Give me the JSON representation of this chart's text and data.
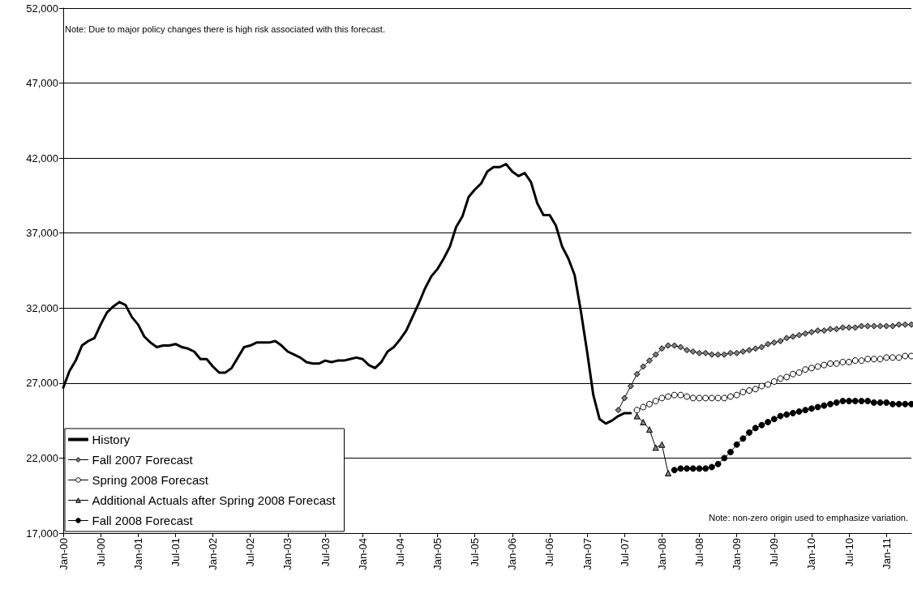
{
  "chart_data": {
    "type": "line",
    "categories": [
      "Jan-00",
      null,
      null,
      null,
      null,
      null,
      "Jul-00",
      null,
      null,
      null,
      null,
      null,
      "Jan-01",
      null,
      null,
      null,
      null,
      null,
      "Jul-01",
      null,
      null,
      null,
      null,
      null,
      "Jan-02",
      null,
      null,
      null,
      null,
      null,
      "Jul-02",
      null,
      null,
      null,
      null,
      null,
      "Jan-03",
      null,
      null,
      null,
      null,
      null,
      "Jul-03",
      null,
      null,
      null,
      null,
      null,
      "Jan-04",
      null,
      null,
      null,
      null,
      null,
      "Jul-04",
      null,
      null,
      null,
      null,
      null,
      "Jan-05",
      null,
      null,
      null,
      null,
      null,
      "Jul-05",
      null,
      null,
      null,
      null,
      null,
      "Jan-06",
      null,
      null,
      null,
      null,
      null,
      "Jul-06",
      null,
      null,
      null,
      null,
      null,
      "Jan-07",
      null,
      null,
      null,
      null,
      null,
      "Jul-07",
      null,
      null,
      null,
      null,
      null,
      "Jan-08",
      null,
      null,
      null,
      null,
      null,
      "Jul-08",
      null,
      null,
      null,
      null,
      null,
      "Jan-09",
      null,
      null,
      null,
      null,
      null,
      "Jul-09",
      null,
      null,
      null,
      null,
      null,
      "Jan-10",
      null,
      null,
      null,
      null,
      null,
      "Jul-10",
      null,
      null,
      null,
      null,
      null,
      "Jan-11",
      null,
      null,
      null,
      null
    ],
    "series": [
      {
        "name": "History",
        "color": "#000000",
        "marker": "none",
        "values": [
          26700,
          27800,
          28500,
          29500,
          29800,
          30000,
          30900,
          31700,
          32100,
          32400,
          32200,
          31400,
          30900,
          30100,
          29700,
          29400,
          29500,
          29500,
          29600,
          29400,
          29300,
          29100,
          28600,
          28600,
          28100,
          27700,
          27700,
          28000,
          28700,
          29400,
          29500,
          29700,
          29700,
          29700,
          29800,
          29500,
          29100,
          28900,
          28700,
          28400,
          28300,
          28300,
          28500,
          28400,
          28500,
          28500,
          28600,
          28700,
          28600,
          28200,
          28000,
          28400,
          29100,
          29400,
          29900,
          30500,
          31400,
          32300,
          33300,
          34100,
          34600,
          35300,
          36100,
          37400,
          38100,
          39400,
          39900,
          40300,
          41100,
          41400,
          41400,
          41600,
          41100,
          40800,
          41000,
          40400,
          39000,
          38200,
          38200,
          37500,
          36100,
          35300,
          34200,
          31800,
          29100,
          26200,
          24600,
          24300,
          24500,
          24800,
          25000,
          25000,
          null,
          null,
          null,
          null,
          null,
          null,
          null,
          null,
          null,
          null,
          null,
          null,
          null,
          null,
          null,
          null,
          null,
          null,
          null,
          null,
          null,
          null,
          null,
          null,
          null,
          null,
          null,
          null,
          null,
          null,
          null,
          null,
          null,
          null,
          null,
          null,
          null,
          null,
          null,
          null,
          null,
          null,
          null,
          null,
          null
        ]
      },
      {
        "name": "Fall 2007 Forecast",
        "color": "#808080",
        "marker": "diamond",
        "values": [
          null,
          null,
          null,
          null,
          null,
          null,
          null,
          null,
          null,
          null,
          null,
          null,
          null,
          null,
          null,
          null,
          null,
          null,
          null,
          null,
          null,
          null,
          null,
          null,
          null,
          null,
          null,
          null,
          null,
          null,
          null,
          null,
          null,
          null,
          null,
          null,
          null,
          null,
          null,
          null,
          null,
          null,
          null,
          null,
          null,
          null,
          null,
          null,
          null,
          null,
          null,
          null,
          null,
          null,
          null,
          null,
          null,
          null,
          null,
          null,
          null,
          null,
          null,
          null,
          null,
          null,
          null,
          null,
          null,
          null,
          null,
          null,
          null,
          null,
          null,
          null,
          null,
          null,
          null,
          null,
          null,
          null,
          null,
          null,
          null,
          null,
          null,
          null,
          null,
          25200,
          26000,
          26800,
          27600,
          28100,
          28500,
          28900,
          29300,
          29500,
          29500,
          29400,
          29200,
          29100,
          29000,
          29000,
          28900,
          28900,
          28900,
          29000,
          29000,
          29100,
          29200,
          29300,
          29400,
          29600,
          29700,
          29800,
          30000,
          30100,
          30200,
          30300,
          30400,
          30500,
          30500,
          30600,
          30600,
          30700,
          30700,
          30700,
          30800,
          30800,
          30800,
          30800,
          30800,
          30800,
          30900,
          30900,
          30900
        ]
      },
      {
        "name": "Spring 2008 Forecast",
        "color": "#ffffff",
        "marker": "circle",
        "values": [
          null,
          null,
          null,
          null,
          null,
          null,
          null,
          null,
          null,
          null,
          null,
          null,
          null,
          null,
          null,
          null,
          null,
          null,
          null,
          null,
          null,
          null,
          null,
          null,
          null,
          null,
          null,
          null,
          null,
          null,
          null,
          null,
          null,
          null,
          null,
          null,
          null,
          null,
          null,
          null,
          null,
          null,
          null,
          null,
          null,
          null,
          null,
          null,
          null,
          null,
          null,
          null,
          null,
          null,
          null,
          null,
          null,
          null,
          null,
          null,
          null,
          null,
          null,
          null,
          null,
          null,
          null,
          null,
          null,
          null,
          null,
          null,
          null,
          null,
          null,
          null,
          null,
          null,
          null,
          null,
          null,
          null,
          null,
          null,
          null,
          null,
          null,
          null,
          null,
          null,
          null,
          null,
          25200,
          25400,
          25600,
          25800,
          26000,
          26100,
          26200,
          26200,
          26100,
          26000,
          26000,
          26000,
          26000,
          26000,
          26000,
          26100,
          26200,
          26400,
          26500,
          26600,
          26800,
          26900,
          27100,
          27300,
          27400,
          27600,
          27700,
          27900,
          28000,
          28100,
          28200,
          28300,
          28300,
          28400,
          28400,
          28500,
          28500,
          28600,
          28600,
          28600,
          28700,
          28700,
          28700,
          28800,
          28800
        ]
      },
      {
        "name": "Additional Actuals after Spring 2008 Forecast",
        "color": "#808080",
        "marker": "triangle",
        "values": [
          null,
          null,
          null,
          null,
          null,
          null,
          null,
          null,
          null,
          null,
          null,
          null,
          null,
          null,
          null,
          null,
          null,
          null,
          null,
          null,
          null,
          null,
          null,
          null,
          null,
          null,
          null,
          null,
          null,
          null,
          null,
          null,
          null,
          null,
          null,
          null,
          null,
          null,
          null,
          null,
          null,
          null,
          null,
          null,
          null,
          null,
          null,
          null,
          null,
          null,
          null,
          null,
          null,
          null,
          null,
          null,
          null,
          null,
          null,
          null,
          null,
          null,
          null,
          null,
          null,
          null,
          null,
          null,
          null,
          null,
          null,
          null,
          null,
          null,
          null,
          null,
          null,
          null,
          null,
          null,
          null,
          null,
          null,
          null,
          null,
          null,
          null,
          null,
          null,
          null,
          null,
          null,
          24800,
          24400,
          23900,
          22700,
          22900,
          21000,
          null,
          null,
          null,
          null,
          null,
          null,
          null,
          null,
          null,
          null,
          null,
          null,
          null,
          null,
          null,
          null,
          null,
          null,
          null,
          null,
          null,
          null,
          null,
          null,
          null,
          null,
          null,
          null,
          null,
          null,
          null,
          null,
          null,
          null,
          null,
          null,
          null,
          null,
          null
        ]
      },
      {
        "name": "Fall 2008 Forecast",
        "color": "#000000",
        "marker": "circle",
        "values": [
          null,
          null,
          null,
          null,
          null,
          null,
          null,
          null,
          null,
          null,
          null,
          null,
          null,
          null,
          null,
          null,
          null,
          null,
          null,
          null,
          null,
          null,
          null,
          null,
          null,
          null,
          null,
          null,
          null,
          null,
          null,
          null,
          null,
          null,
          null,
          null,
          null,
          null,
          null,
          null,
          null,
          null,
          null,
          null,
          null,
          null,
          null,
          null,
          null,
          null,
          null,
          null,
          null,
          null,
          null,
          null,
          null,
          null,
          null,
          null,
          null,
          null,
          null,
          null,
          null,
          null,
          null,
          null,
          null,
          null,
          null,
          null,
          null,
          null,
          null,
          null,
          null,
          null,
          null,
          null,
          null,
          null,
          null,
          null,
          null,
          null,
          null,
          null,
          null,
          null,
          null,
          null,
          null,
          null,
          null,
          null,
          null,
          null,
          21200,
          21300,
          21300,
          21300,
          21300,
          21300,
          21400,
          21600,
          22000,
          22400,
          22900,
          23300,
          23700,
          24000,
          24200,
          24400,
          24600,
          24800,
          24900,
          25000,
          25100,
          25200,
          25300,
          25400,
          25500,
          25600,
          25700,
          25800,
          25800,
          25800,
          25800,
          25800,
          25700,
          25700,
          25700,
          25600,
          25600,
          25600,
          25600
        ]
      }
    ],
    "ylim": [
      17000,
      52000
    ],
    "yticks": [
      {
        "value": 17000,
        "label": "17,000"
      },
      {
        "value": 22000,
        "label": "22,000"
      },
      {
        "value": 27000,
        "label": "27,000"
      },
      {
        "value": 32000,
        "label": "32,000"
      },
      {
        "value": 37000,
        "label": "37,000"
      },
      {
        "value": 42000,
        "label": "42,000"
      },
      {
        "value": 47000,
        "label": "47,000"
      },
      {
        "value": 52000,
        "label": "52,000"
      }
    ],
    "grid": "y",
    "legend": "bottom left",
    "annotations": [
      "Note: Due to major policy changes there is high risk associated with this forecast.",
      "Note: non-zero origin used to emphasize variation."
    ]
  }
}
